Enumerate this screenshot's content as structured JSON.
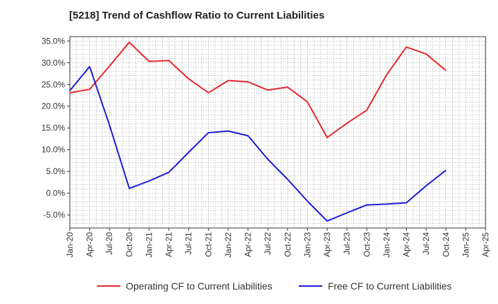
{
  "chart_data": {
    "type": "line",
    "title": "[5218]  Trend of Cashflow Ratio to Current Liabilities",
    "xlabel": "",
    "ylabel": "",
    "ylim": [
      -8,
      36
    ],
    "y_ticks": [
      "35.0%",
      "30.0%",
      "25.0%",
      "20.0%",
      "15.0%",
      "10.0%",
      "5.0%",
      "0.0%",
      "-5.0%"
    ],
    "y_tick_values": [
      35,
      30,
      25,
      20,
      15,
      10,
      5,
      0,
      -5
    ],
    "categories": [
      "Jan-20",
      "Apr-20",
      "Jul-20",
      "Oct-20",
      "Jan-21",
      "Apr-21",
      "Jul-21",
      "Oct-21",
      "Jan-22",
      "Apr-22",
      "Jul-22",
      "Oct-22",
      "Jan-23",
      "Apr-23",
      "Jul-23",
      "Oct-23",
      "Jan-24",
      "Apr-24",
      "Jul-24",
      "Oct-24",
      "Jan-25",
      "Apr-25"
    ],
    "grid": true,
    "legend_position": "bottom",
    "series": [
      {
        "name": "Operating CF to Current Liabilities",
        "color": "#e8262a",
        "values": [
          23.1,
          23.9,
          29.2,
          34.7,
          30.3,
          30.5,
          26.3,
          23.1,
          25.9,
          25.6,
          23.7,
          24.4,
          21.0,
          12.8,
          16.1,
          19.1,
          27.2,
          33.6,
          32.0,
          28.2,
          null,
          null
        ]
      },
      {
        "name": "Free CF to Current Liabilities",
        "color": "#1a1ad6",
        "values": [
          23.6,
          29.1,
          15.7,
          1.1,
          2.8,
          4.8,
          9.4,
          13.9,
          14.3,
          13.2,
          7.8,
          3.2,
          -1.8,
          -6.4,
          -4.5,
          -2.7,
          -2.5,
          -2.2,
          1.7,
          5.3,
          null,
          null
        ]
      }
    ]
  }
}
